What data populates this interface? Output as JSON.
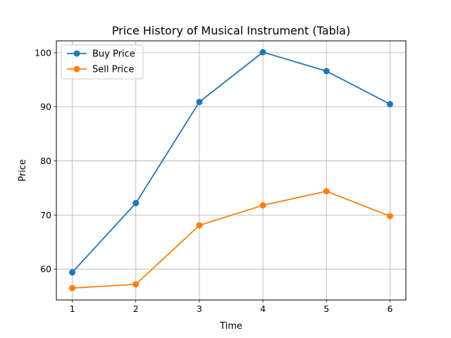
{
  "chart_data": {
    "type": "line",
    "title": "Price History of Musical Instrument (Tabla)",
    "xlabel": "Time",
    "ylabel": "Price",
    "x": [
      1,
      2,
      3,
      4,
      5,
      6
    ],
    "xlim": [
      0.75,
      6.25
    ],
    "ylim": [
      54.3,
      102.2
    ],
    "xticks": [
      1,
      2,
      3,
      4,
      5,
      6
    ],
    "yticks": [
      60,
      70,
      80,
      90,
      100
    ],
    "grid": true,
    "legend_position": "upper-left",
    "series": [
      {
        "name": "Buy Price",
        "color": "#1f77b4",
        "marker": "circle",
        "values": [
          59.4,
          72.2,
          90.9,
          100.1,
          96.6,
          90.5
        ]
      },
      {
        "name": "Sell Price",
        "color": "#ff7f0e",
        "marker": "circle",
        "values": [
          56.5,
          57.2,
          68.1,
          71.8,
          74.4,
          69.8
        ]
      }
    ]
  }
}
